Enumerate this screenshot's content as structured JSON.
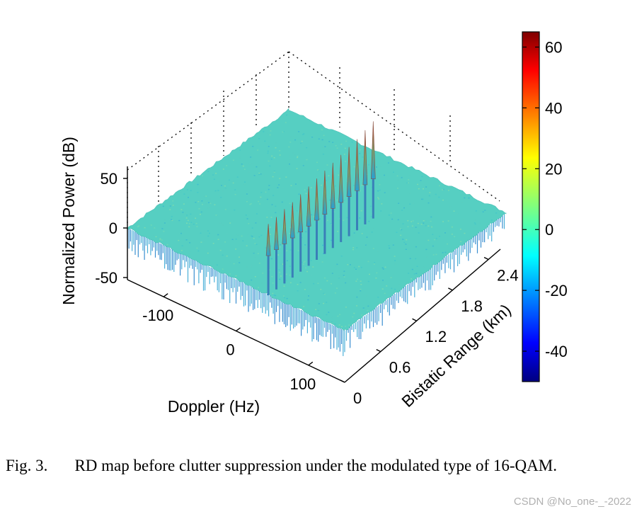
{
  "chart_data": {
    "type": "surface",
    "title": "",
    "zlabel": "Normalized Power (dB)",
    "xlabel": "Doppler (Hz)",
    "ylabel": "Bistatic Range (km)",
    "z_ticks": [
      "50",
      "0",
      "-50"
    ],
    "z_tick_values": [
      50,
      0,
      -50
    ],
    "doppler_ticks": [
      "-100",
      "0",
      "100"
    ],
    "doppler_tick_values": [
      -100,
      0,
      100
    ],
    "range_ticks": [
      "0",
      "0.6",
      "1.2",
      "1.8",
      "2.4"
    ],
    "range_tick_values": [
      0,
      0.6,
      1.2,
      1.8,
      2.4
    ],
    "zlim": [
      -50,
      65
    ],
    "noise_floor_db": 0,
    "clutter_ridge": {
      "doppler_hz": 0,
      "range_km": [
        0.6,
        0.75,
        0.9,
        1.05,
        1.2,
        1.35,
        1.5,
        1.65,
        1.8,
        1.95,
        2.1,
        2.25,
        2.4,
        2.55
      ],
      "peak_db": [
        32,
        33,
        35,
        36,
        38,
        40,
        42,
        44,
        46,
        48,
        50,
        52,
        55,
        58
      ]
    },
    "colorbar": {
      "colormap": "jet",
      "ticks": [
        "60",
        "40",
        "20",
        "0",
        "-20",
        "-40"
      ],
      "tick_values": [
        60,
        40,
        20,
        0,
        -20,
        -40
      ],
      "range": [
        -50,
        65
      ]
    }
  },
  "caption": {
    "label": "Fig. 3.",
    "text": "RD map before clutter suppression under the modulated type of 16-QAM."
  },
  "watermark": "CSDN @No_one-_-2022"
}
